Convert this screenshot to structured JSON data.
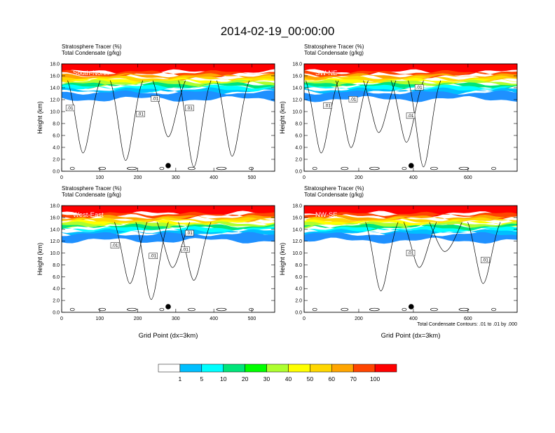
{
  "title": "2014-02-19_00:00:00",
  "footnote": "Total Condensate Contours: .01 to .01 by .000",
  "colorbar": {
    "levels": [
      "1",
      "5",
      "10",
      "20",
      "30",
      "40",
      "50",
      "60",
      "70",
      "100"
    ],
    "colors": [
      "#ffffff",
      "#1e90ff",
      "#00bfff",
      "#00ffff",
      "#00e57a",
      "#00ff00",
      "#adff2f",
      "#ffff00",
      "#ffd700",
      "#ffa500",
      "#ff4500",
      "#ff0000"
    ]
  },
  "chart_data": [
    {
      "type": "heatmap",
      "panel_label": "South-North",
      "line1": "Stratosphere Tracer   (%)",
      "line2": "Total Condensate   (g/kg)",
      "ylabel": "Height (km)",
      "xlabel": "",
      "xlim": [
        0,
        560
      ],
      "ylim": [
        0,
        18
      ],
      "xticks": [
        "0",
        "100",
        "200",
        "300",
        "400",
        "500"
      ],
      "yticks": [
        "0.0",
        "2.0",
        "4.0",
        "6.0",
        "8.0",
        "10.0",
        "12.0",
        "14.0",
        "16.0",
        "18.0"
      ],
      "contour_labels": [
        ".01",
        ".01",
        ".01",
        ".01"
      ],
      "marker_x": 280
    },
    {
      "type": "heatmap",
      "panel_label": "SW-NE",
      "line1": "Stratosphere Tracer   (%)",
      "line2": "Total Condensate   (g/kg)",
      "ylabel": "Height (km)",
      "xlabel": "",
      "xlim": [
        0,
        780
      ],
      "ylim": [
        0,
        18
      ],
      "xticks": [
        "0",
        "200",
        "400",
        "600"
      ],
      "yticks": [
        "0.0",
        "2.0",
        "4.0",
        "6.0",
        "8.0",
        "10.0",
        "12.0",
        "14.0",
        "16.0",
        "18.0"
      ],
      "contour_labels": [
        ".01",
        ".01",
        ".01",
        ".01"
      ],
      "marker_x": 392
    },
    {
      "type": "heatmap",
      "panel_label": "West-East",
      "line1": "Stratosphere Tracer   (%)",
      "line2": "Total Condensate   (g/kg)",
      "ylabel": "Height (km)",
      "xlabel": "Grid Point (dx=3km)",
      "xlim": [
        0,
        560
      ],
      "ylim": [
        0,
        18
      ],
      "xticks": [
        "0",
        "100",
        "200",
        "300",
        "400",
        "500"
      ],
      "yticks": [
        "0.0",
        "2.0",
        "4.0",
        "6.0",
        "8.0",
        "10.0",
        "12.0",
        "14.0",
        "16.0",
        "18.0"
      ],
      "contour_labels": [
        ".01",
        ".01",
        ".01",
        ".01"
      ],
      "marker_x": 280
    },
    {
      "type": "heatmap",
      "panel_label": "NW-SE",
      "line1": "Stratosphere Tracer   (%)",
      "line2": "Total Condensate   (g/kg)",
      "ylabel": "Height (km)",
      "xlabel": "Grid Point (dx=3km)",
      "xlim": [
        0,
        780
      ],
      "ylim": [
        0,
        18
      ],
      "xticks": [
        "0",
        "200",
        "400",
        "600"
      ],
      "yticks": [
        "0.0",
        "2.0",
        "4.0",
        "6.0",
        "8.0",
        "10.0",
        "12.0",
        "14.0",
        "16.0",
        "18.0"
      ],
      "contour_labels": [
        ".01",
        ".01"
      ],
      "marker_x": 392
    }
  ]
}
